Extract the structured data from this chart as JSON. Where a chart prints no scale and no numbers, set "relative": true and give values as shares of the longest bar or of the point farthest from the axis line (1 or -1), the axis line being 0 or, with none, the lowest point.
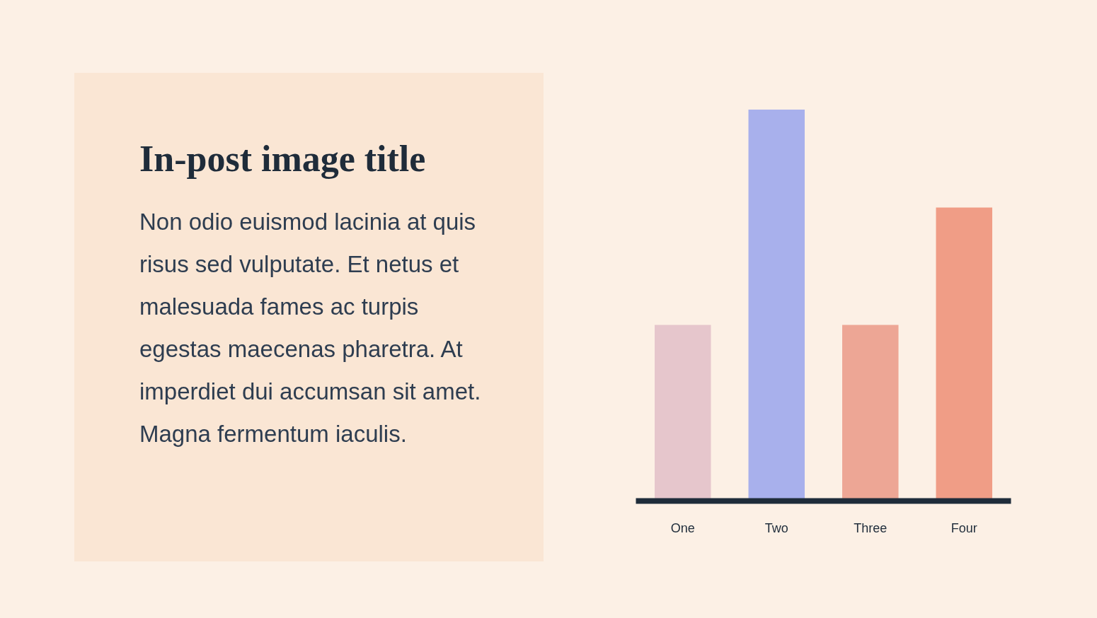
{
  "chart_data": [
    {
      "type": "other",
      "title": "In-post image title",
      "annotations": [
        "Non odio euismod lacinia at quis risus sed vulputate. Et netus et malesuada fames ac turpis egestas maecenas pharetra. At imperdiet dui accumsan sit amet. Magna fermentum iaculis."
      ]
    },
    {
      "type": "bar",
      "relative": true,
      "categories": [
        "One",
        "Two",
        "Three",
        "Four"
      ],
      "values": [
        0.45,
        1,
        0.45,
        0.75
      ],
      "colors": [
        "#e6c6cc",
        "#a8b0ec",
        "#eda695",
        "#f09d86"
      ]
    }
  ]
}
